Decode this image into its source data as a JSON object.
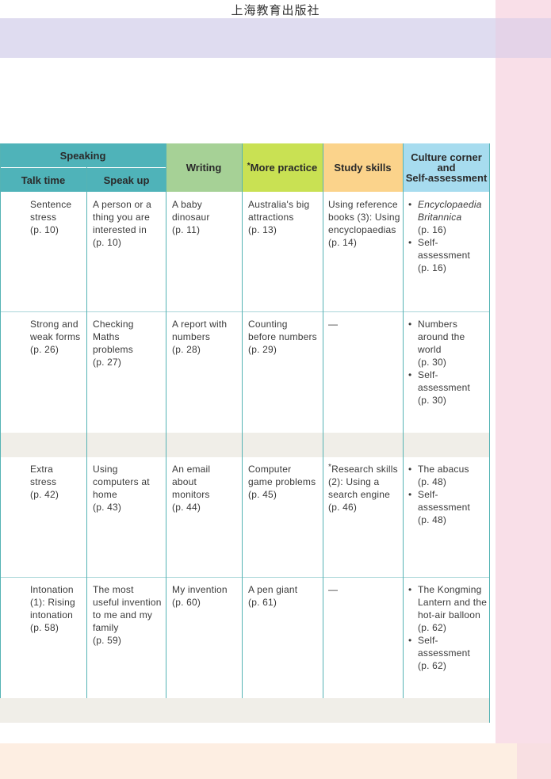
{
  "publisher": "上海教育出版社",
  "headers": {
    "speaking": "Speaking",
    "talk_time": "Talk time",
    "speak_up": "Speak up",
    "writing": "Writing",
    "more_practice_star": "*",
    "more_practice": "More practice",
    "study_skills": "Study skills",
    "culture_line1": "Culture corner",
    "culture_line2": "and",
    "culture_line3": "Self-assessment"
  },
  "rows": [
    {
      "talk_time": [
        "Sentence",
        "stress",
        "(p. 10)"
      ],
      "speak_up": [
        "A person or a",
        "thing you are",
        "interested in",
        "(p. 10)"
      ],
      "writing": [
        "A baby",
        "dinosaur",
        "(p. 11)"
      ],
      "more_practice": [
        "Australia's big",
        "attractions",
        "(p. 13)"
      ],
      "study_skills": [
        "Using reference",
        "books (3): Using",
        "encyclopaedias",
        "(p. 14)"
      ],
      "culture": [
        [
          "Encyclopaedia",
          "Britannica",
          "(p. 16)"
        ],
        [
          "Self-assessment",
          "(p. 16)"
        ]
      ]
    },
    {
      "talk_time": [
        "Strong and",
        "weak forms",
        "(p. 26)"
      ],
      "speak_up": [
        "Checking",
        "Maths",
        "problems",
        "(p. 27)"
      ],
      "writing": [
        "A report with",
        "numbers",
        "(p. 28)"
      ],
      "more_practice": [
        "Counting",
        "before numbers",
        "(p. 29)"
      ],
      "study_skills": [
        "—"
      ],
      "culture": [
        [
          "Numbers",
          "around the",
          "world",
          "(p. 30)"
        ],
        [
          "Self-assessment",
          "(p. 30)"
        ]
      ]
    },
    {
      "talk_time": [
        "Extra",
        "stress",
        "(p. 42)"
      ],
      "speak_up": [
        "Using",
        "computers at",
        "home",
        "(p. 43)"
      ],
      "writing": [
        "An email",
        "about",
        "monitors",
        "(p. 44)"
      ],
      "more_practice": [
        "Computer",
        "game problems",
        "(p. 45)"
      ],
      "study_skills_star": "*",
      "study_skills": [
        "Research skills",
        "(2): Using a",
        "search engine",
        "(p. 46)"
      ],
      "culture": [
        [
          "The abacus",
          "(p. 48)"
        ],
        [
          "Self-assessment",
          "(p. 48)"
        ]
      ]
    },
    {
      "talk_time": [
        "Intonation",
        "(1): Rising",
        "intonation",
        "(p. 58)"
      ],
      "speak_up": [
        "The most",
        "useful invention",
        "to me and my",
        "family",
        "(p. 59)"
      ],
      "writing": [
        "My invention",
        "(p. 60)"
      ],
      "more_practice": [
        "A pen giant",
        "(p. 61)"
      ],
      "study_skills": [
        "—"
      ],
      "culture": [
        [
          "The Kongming",
          "Lantern and the",
          "hot-air balloon",
          "(p. 62)"
        ],
        [
          "Self-assessment",
          "(p. 62)"
        ]
      ]
    }
  ],
  "colors": {
    "teal_header": "#4fb3b9",
    "writing_header": "#a6d196",
    "more_header": "#c9e153",
    "study_header": "#fbd38b",
    "culture_header": "#a7dcef"
  }
}
